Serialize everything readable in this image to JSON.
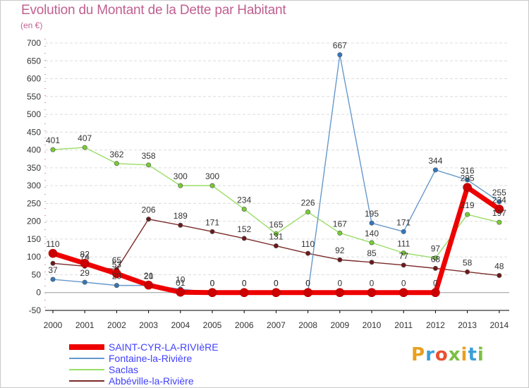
{
  "title": "Evolution du Montant de la Dette par Habitant",
  "subtitle": "(en €)",
  "logo_text": "Proxiti",
  "colors": {
    "title": "#c06090",
    "grid": "#dcdcdc",
    "zero_line": "#9a9a9a",
    "axis": "#000000",
    "label": "#333333",
    "legend_text": "#4040ff"
  },
  "chart_data": {
    "type": "line",
    "title": "Evolution du Montant de la Dette par Habitant",
    "subtitle": "(en €)",
    "x": [
      "2000",
      "2001",
      "2002",
      "2003",
      "2004",
      "2005",
      "2006",
      "2007",
      "2008",
      "2009",
      "2010",
      "2011",
      "2012",
      "2013",
      "2014"
    ],
    "ylim": [
      -50,
      700
    ],
    "yticks": [
      -50,
      0,
      50,
      100,
      150,
      200,
      250,
      300,
      350,
      400,
      450,
      500,
      550,
      600,
      650,
      700
    ],
    "grid": "horizontal, on",
    "legend_position": "bottom-left",
    "series": [
      {
        "name": "Abbéville-la-Rivière",
        "color": "#7b2a2a",
        "marker": "#6b1a1a",
        "values": [
          82,
          74,
          65,
          206,
          189,
          171,
          152,
          131,
          110,
          92,
          85,
          77,
          68,
          58,
          48
        ],
        "labels": [
          "",
          "74",
          "65",
          "206",
          "189",
          "171",
          "152",
          "131",
          "110",
          "92",
          "85",
          "77",
          "68",
          "58",
          "48"
        ]
      },
      {
        "name": "Saclas",
        "color": "#99dd66",
        "marker": "#77cc33",
        "values": [
          401,
          407,
          362,
          358,
          300,
          300,
          234,
          165,
          226,
          167,
          140,
          111,
          97,
          219,
          197
        ],
        "labels": [
          "401",
          "407",
          "362",
          "358",
          "300",
          "300",
          "234",
          "165",
          "226",
          "167",
          "140",
          "111",
          "97",
          "219",
          "197"
        ]
      },
      {
        "name": "Fontaine-la-Rivière",
        "color": "#6699cc",
        "marker": "#3377bb",
        "values": [
          37,
          29,
          20,
          20,
          10,
          0,
          0,
          0,
          0,
          667,
          195,
          171,
          344,
          316,
          255
        ],
        "labels": [
          "37",
          "29",
          "20",
          "20",
          "10",
          "0",
          "0",
          "0",
          "0",
          "667",
          "195",
          "171",
          "344",
          "316",
          "255"
        ]
      },
      {
        "name": "SAINT-CYR-LA-RIVIèRE",
        "color": "#ee0000",
        "marker": "#cc0000",
        "values": [
          110,
          82,
          53,
          21,
          1,
          0,
          0,
          0,
          0,
          0,
          0,
          0,
          0,
          295,
          234
        ],
        "labels": [
          "110",
          "82",
          "53",
          "21",
          "01",
          "0",
          "0",
          "0",
          "0",
          "0",
          "0",
          "0",
          "0",
          "295",
          "234"
        ]
      }
    ]
  },
  "legend": [
    {
      "label": "SAINT-CYR-LA-RIVIèRE",
      "color": "#ee0000",
      "thickness": 8
    },
    {
      "label": "Fontaine-la-Rivière",
      "color": "#6699cc",
      "thickness": 2
    },
    {
      "label": "Saclas",
      "color": "#99dd66",
      "thickness": 2
    },
    {
      "label": "Abbéville-la-Rivière",
      "color": "#7b2a2a",
      "thickness": 2
    }
  ],
  "logo_colors": [
    "#e8a020",
    "#3aa0d8",
    "#e85030",
    "#7ac142",
    "#e8a020",
    "#3aa0d8",
    "#7ac142"
  ]
}
